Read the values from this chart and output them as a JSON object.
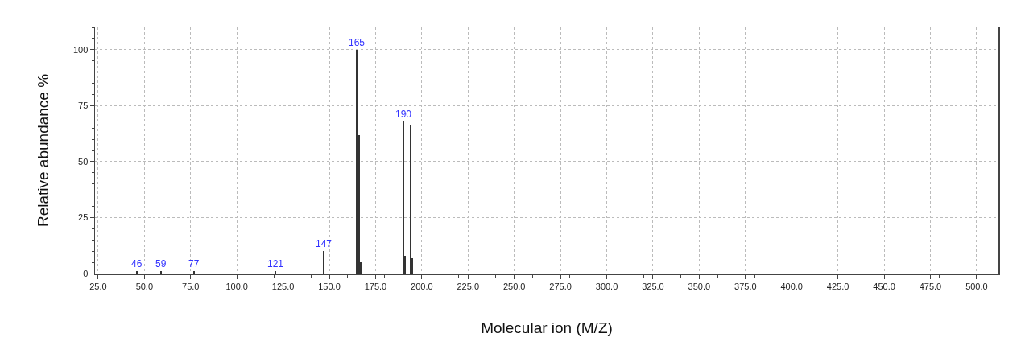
{
  "chart_data": {
    "type": "bar",
    "xlabel": "Molecular ion (M/Z)",
    "ylabel": "Relative abundance %",
    "x": [
      46,
      59,
      77,
      121,
      147,
      165,
      166,
      167,
      190,
      191,
      194,
      195
    ],
    "values": [
      1,
      1,
      1,
      1,
      10,
      100,
      62,
      5,
      68,
      8,
      66,
      7
    ],
    "color": "#333333",
    "xlim": [
      23.3,
      511.8
    ],
    "xticks": [
      {
        "value": 25,
        "label": "25.0"
      },
      {
        "value": 50,
        "label": "50.0"
      },
      {
        "value": 75,
        "label": "75.0"
      },
      {
        "value": 100,
        "label": "100.0"
      },
      {
        "value": 125,
        "label": "125.0"
      },
      {
        "value": 150,
        "label": "150.0"
      },
      {
        "value": 175,
        "label": "175.0"
      },
      {
        "value": 200,
        "label": "200.0"
      },
      {
        "value": 225,
        "label": "225.0"
      },
      {
        "value": 250,
        "label": "250.0"
      },
      {
        "value": 275,
        "label": "275.0"
      },
      {
        "value": 300,
        "label": "300.0"
      },
      {
        "value": 325,
        "label": "325.0"
      },
      {
        "value": 350,
        "label": "350.0"
      },
      {
        "value": 375,
        "label": "375.0"
      },
      {
        "value": 400,
        "label": "400.0"
      },
      {
        "value": 425,
        "label": "425.0"
      },
      {
        "value": 450,
        "label": "450.0"
      },
      {
        "value": 475,
        "label": "475.0"
      },
      {
        "value": 500,
        "label": "500.0"
      }
    ],
    "ylim": [
      0,
      110
    ],
    "yticks": [
      0,
      25,
      50,
      75,
      100
    ],
    "grid": true,
    "annotations": [
      {
        "text": "46",
        "x": 46,
        "y": 1
      },
      {
        "text": "59",
        "x": 59,
        "y": 1
      },
      {
        "text": "77",
        "x": 77,
        "y": 1
      },
      {
        "text": "121",
        "x": 121,
        "y": 1
      },
      {
        "text": "147",
        "x": 147,
        "y": 10
      },
      {
        "text": "165",
        "x": 165,
        "y": 100
      },
      {
        "text": "190",
        "x": 190,
        "y": 68
      }
    ]
  }
}
